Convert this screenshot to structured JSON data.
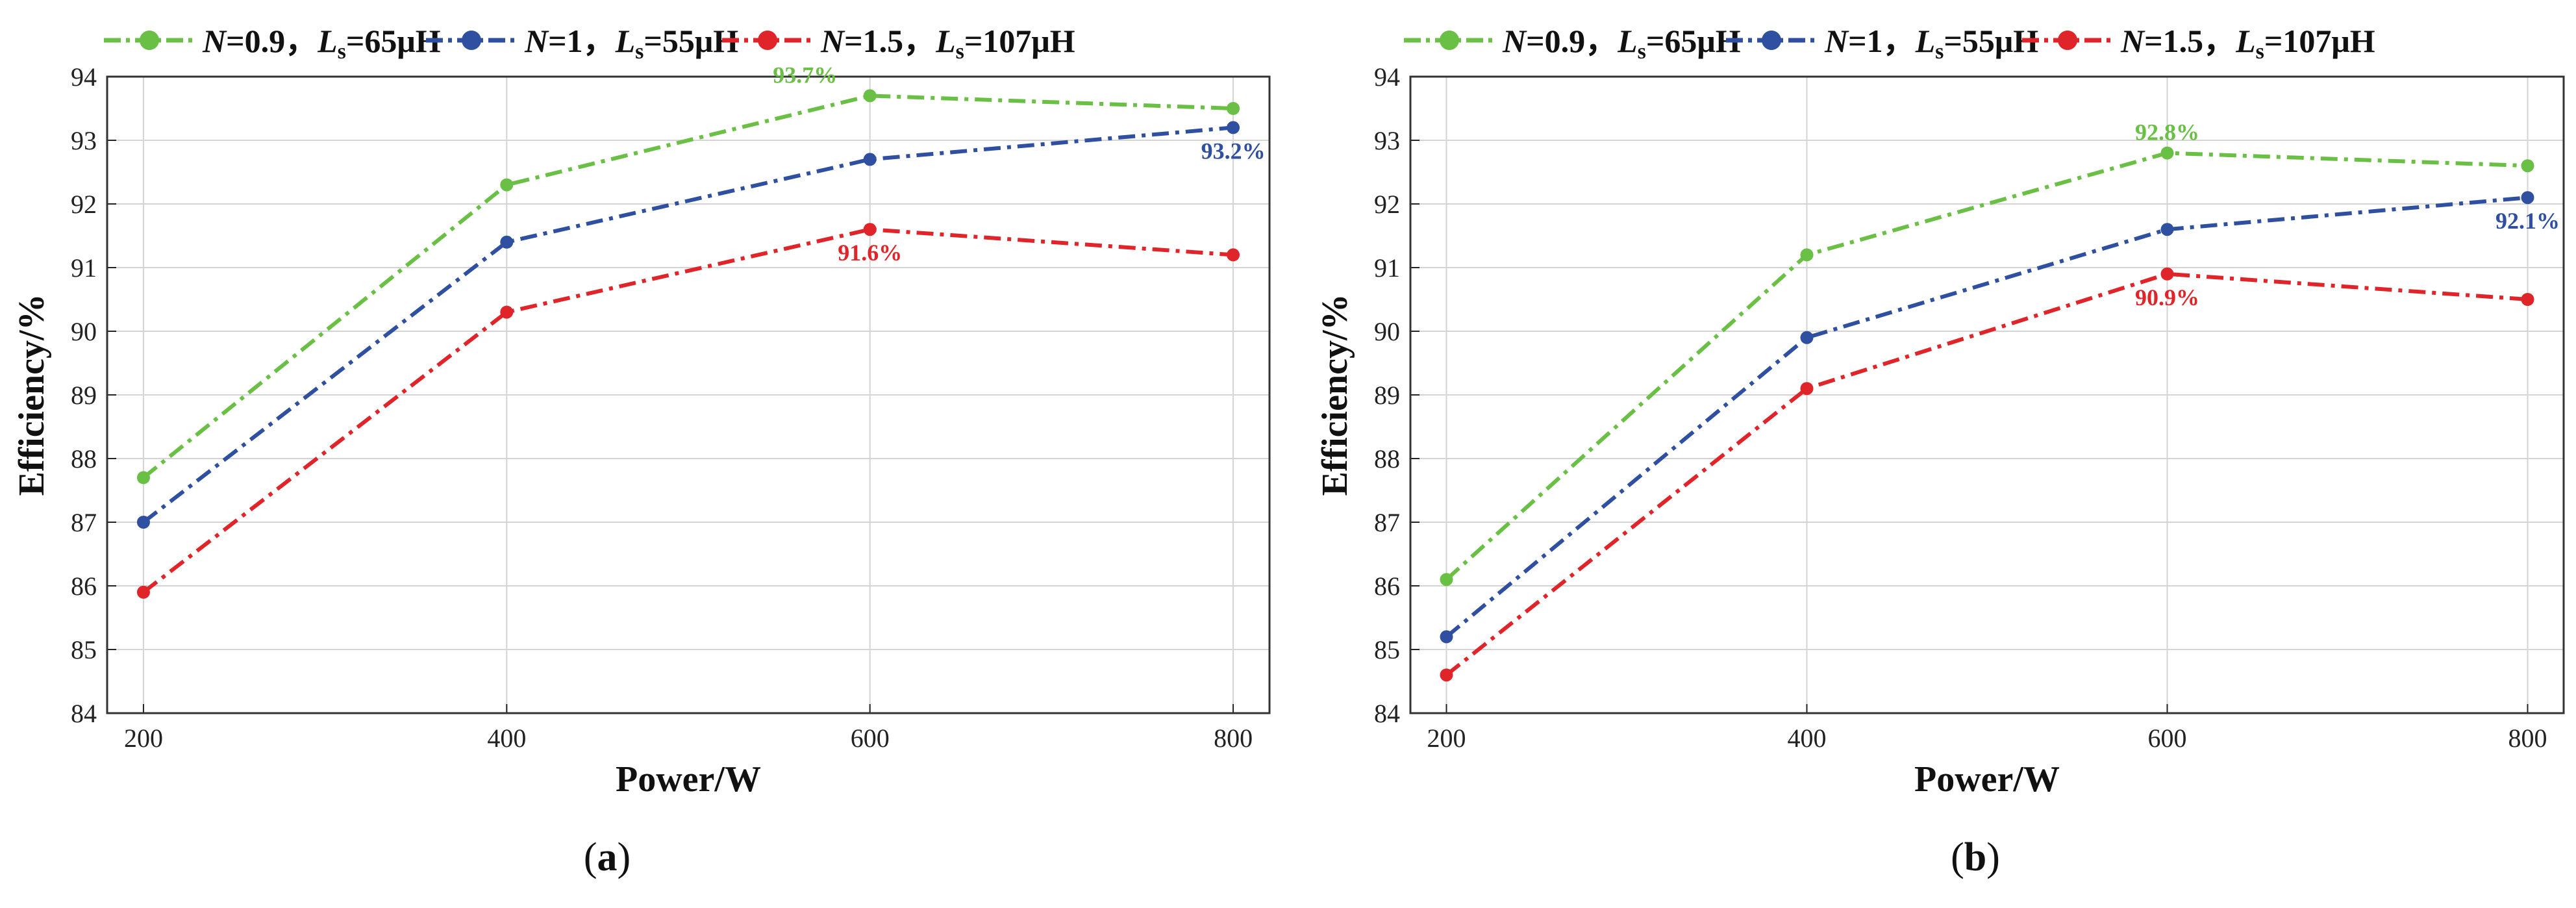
{
  "chart_data": [
    {
      "type": "line",
      "caption": {
        "pre": "(",
        "letter": "a",
        "post": ")"
      },
      "xlabel": "Power/W",
      "ylabel": "Efficiency/%",
      "x": [
        200,
        400,
        600,
        800
      ],
      "xlim": [
        180,
        820
      ],
      "ylim": [
        84,
        94
      ],
      "xticks": [
        "200",
        "400",
        "600",
        "800"
      ],
      "yticks": [
        "84",
        "85",
        "86",
        "87",
        "88",
        "89",
        "90",
        "91",
        "92",
        "93",
        "94"
      ],
      "grid": true,
      "series": [
        {
          "name": "N=0.9，Ls=65μH",
          "color": "#6abf45",
          "values": [
            87.7,
            92.3,
            93.7,
            93.5
          ],
          "annotation": {
            "x": 600,
            "y": 93.7,
            "text": "93.7%",
            "pos": "above-left"
          }
        },
        {
          "name": "N=1，Ls=55μH",
          "color": "#2f4fa0",
          "values": [
            87.0,
            91.4,
            92.7,
            93.2
          ],
          "annotation": {
            "x": 800,
            "y": 93.2,
            "text": "93.2%",
            "pos": "below"
          }
        },
        {
          "name": "N=1.5，Ls=107μH",
          "color": "#e0252a",
          "values": [
            85.9,
            90.3,
            91.6,
            91.2
          ],
          "annotation": {
            "x": 600,
            "y": 91.6,
            "text": "91.6%",
            "pos": "below"
          }
        }
      ]
    },
    {
      "type": "line",
      "caption": {
        "pre": "(",
        "letter": "b",
        "post": ")"
      },
      "xlabel": "Power/W",
      "ylabel": "Efficiency/%",
      "x": [
        200,
        400,
        600,
        800
      ],
      "xlim": [
        180,
        820
      ],
      "ylim": [
        84,
        94
      ],
      "xticks": [
        "200",
        "400",
        "600",
        "800"
      ],
      "yticks": [
        "84",
        "85",
        "86",
        "87",
        "88",
        "89",
        "90",
        "91",
        "92",
        "93",
        "94"
      ],
      "grid": true,
      "series": [
        {
          "name": "N=0.9，Ls=65μH",
          "color": "#6abf45",
          "values": [
            86.1,
            91.2,
            92.8,
            92.6
          ],
          "annotation": {
            "x": 600,
            "y": 92.8,
            "text": "92.8%",
            "pos": "above"
          }
        },
        {
          "name": "N=1，Ls=55μH",
          "color": "#2f4fa0",
          "values": [
            85.2,
            89.9,
            91.6,
            92.1
          ],
          "annotation": {
            "x": 800,
            "y": 92.1,
            "text": "92.1%",
            "pos": "below"
          }
        },
        {
          "name": "N=1.5，Ls=107μH",
          "color": "#e0252a",
          "values": [
            84.6,
            89.1,
            90.9,
            90.5
          ],
          "annotation": {
            "x": 600,
            "y": 90.9,
            "text": "90.9%",
            "pos": "below"
          }
        }
      ]
    }
  ],
  "legend": {
    "placement": "top",
    "entries": [
      {
        "var": "N",
        "eq1": "=0.9，",
        "ls": "L",
        "sub": "s",
        "eq2": "=65μH",
        "color": "#6abf45"
      },
      {
        "var": "N",
        "eq1": "=1，",
        "ls": "L",
        "sub": "s",
        "eq2": "=55μH",
        "color": "#2f4fa0"
      },
      {
        "var": "N",
        "eq1": "=1.5，",
        "ls": "L",
        "sub": "s",
        "eq2": "=107μH",
        "color": "#e0252a"
      }
    ]
  }
}
